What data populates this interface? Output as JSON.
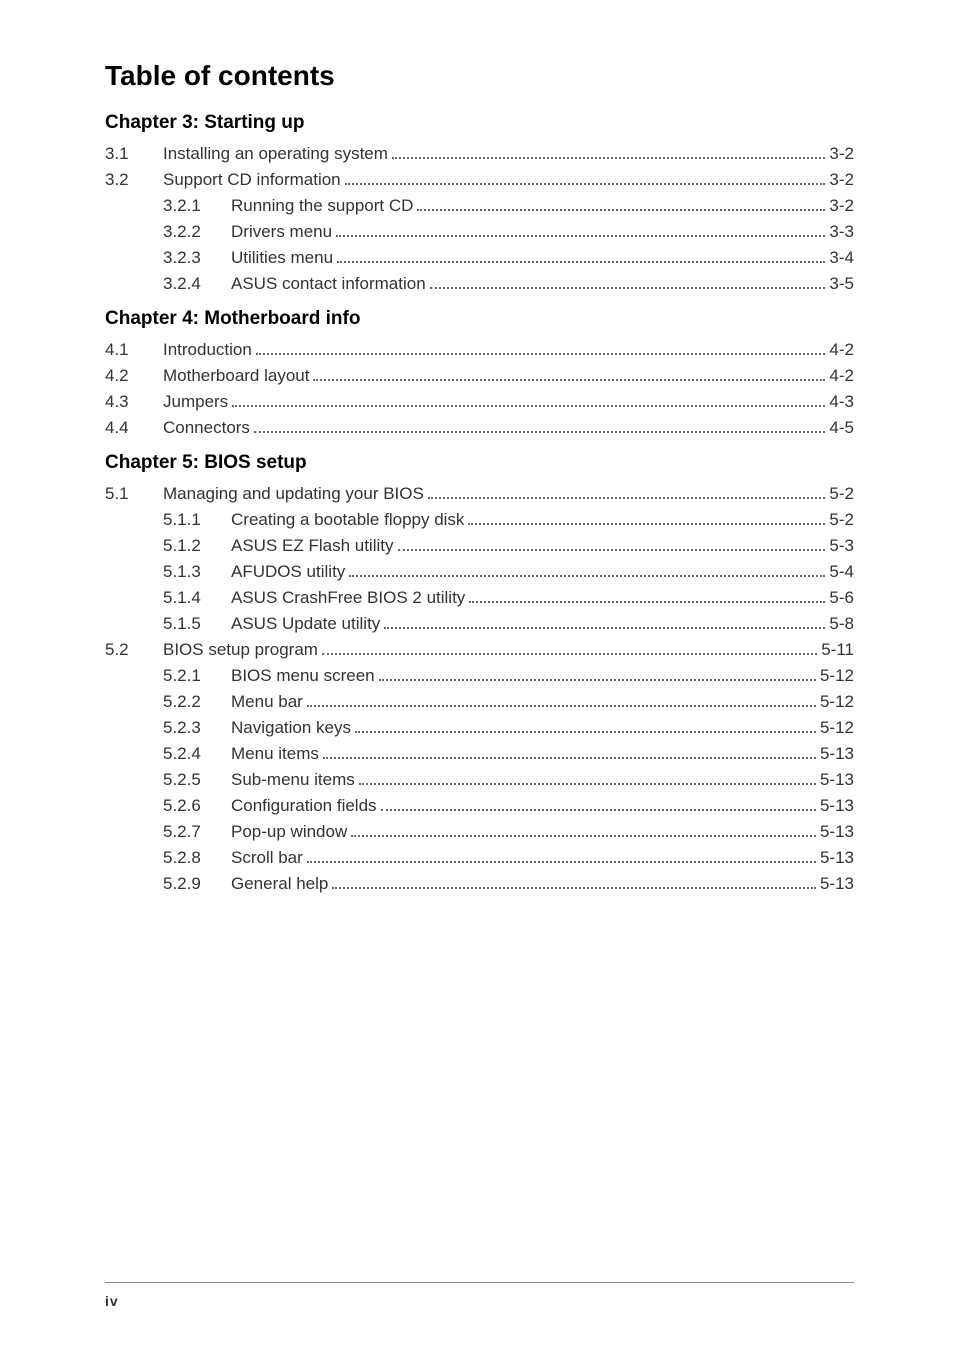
{
  "title": "Table of contents",
  "footer_page": "iv",
  "chapters": [
    {
      "heading": "Chapter 3: Starting up",
      "entries": [
        {
          "level": 1,
          "num": "3.1",
          "label": "Installing an operating system",
          "page": "3-2"
        },
        {
          "level": 1,
          "num": "3.2",
          "label": "Support CD information",
          "page": "3-2"
        },
        {
          "level": 2,
          "num": "3.2.1",
          "label": "Running the support CD",
          "page": "3-2"
        },
        {
          "level": 2,
          "num": "3.2.2",
          "label": "Drivers menu",
          "page": "3-3"
        },
        {
          "level": 2,
          "num": "3.2.3",
          "label": "Utilities menu",
          "page": "3-4"
        },
        {
          "level": 2,
          "num": "3.2.4",
          "label": "ASUS contact information",
          "page": "3-5"
        }
      ]
    },
    {
      "heading": "Chapter 4: Motherboard info",
      "entries": [
        {
          "level": 1,
          "num": "4.1",
          "label": "Introduction",
          "page": "4-2"
        },
        {
          "level": 1,
          "num": "4.2",
          "label": "Motherboard layout",
          "page": "4-2"
        },
        {
          "level": 1,
          "num": "4.3",
          "label": "Jumpers",
          "page": "4-3"
        },
        {
          "level": 1,
          "num": "4.4",
          "label": "Connectors",
          "page": "4-5"
        }
      ]
    },
    {
      "heading": "Chapter 5: BIOS setup",
      "entries": [
        {
          "level": 1,
          "num": "5.1",
          "label": "Managing and updating your BIOS",
          "page": "5-2"
        },
        {
          "level": 2,
          "num": "5.1.1",
          "label": "Creating a bootable floppy disk",
          "page": "5-2"
        },
        {
          "level": 2,
          "num": "5.1.2",
          "label": "ASUS EZ Flash utility",
          "page": "5-3"
        },
        {
          "level": 2,
          "num": "5.1.3",
          "label": "AFUDOS utility",
          "page": "5-4"
        },
        {
          "level": 2,
          "num": "5.1.4",
          "label": "ASUS CrashFree BIOS 2 utility",
          "page": "5-6"
        },
        {
          "level": 2,
          "num": "5.1.5",
          "label": "ASUS Update utility",
          "page": "5-8"
        },
        {
          "level": 1,
          "num": "5.2",
          "label": "BIOS setup program",
          "page": "5-11"
        },
        {
          "level": 2,
          "num": "5.2.1",
          "label": "BIOS menu screen",
          "page": "5-12"
        },
        {
          "level": 2,
          "num": "5.2.2",
          "label": "Menu bar",
          "page": "5-12"
        },
        {
          "level": 2,
          "num": "5.2.3",
          "label": "Navigation keys",
          "page": "5-12"
        },
        {
          "level": 2,
          "num": "5.2.4",
          "label": "Menu items",
          "page": "5-13"
        },
        {
          "level": 2,
          "num": "5.2.5",
          "label": "Sub-menu items",
          "page": "5-13"
        },
        {
          "level": 2,
          "num": "5.2.6",
          "label": "Configuration fields",
          "page": "5-13"
        },
        {
          "level": 2,
          "num": "5.2.7",
          "label": "Pop-up window",
          "page": "5-13"
        },
        {
          "level": 2,
          "num": "5.2.8",
          "label": "Scroll bar",
          "page": "5-13"
        },
        {
          "level": 2,
          "num": "5.2.9",
          "label": "General help",
          "page": "5-13"
        }
      ]
    }
  ]
}
